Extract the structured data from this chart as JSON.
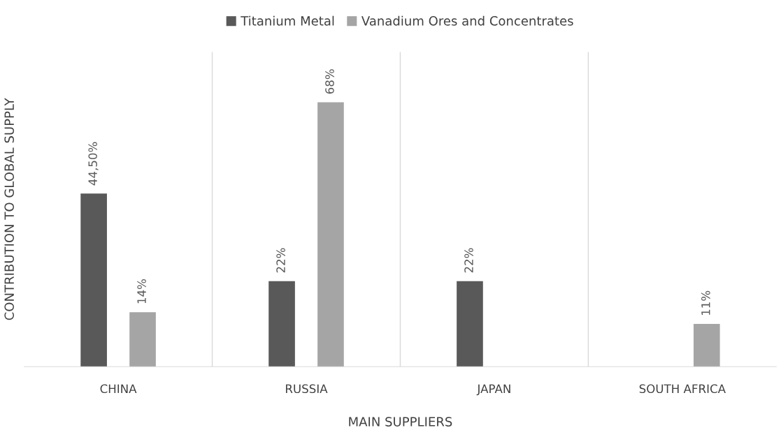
{
  "chart_data": {
    "type": "bar",
    "xlabel": "MAIN SUPPLIERS",
    "ylabel": "CONTRIBUTION TO GLOBAL SUPPLY",
    "categories": [
      "CHINA",
      "RUSSIA",
      "JAPAN",
      "SOUTH AFRICA"
    ],
    "series": [
      {
        "name": "Titanium Metal",
        "color": "#595959",
        "values": [
          44.5,
          22,
          22,
          null
        ],
        "value_labels": [
          "44,50%",
          "22%",
          "22%",
          null
        ]
      },
      {
        "name": "Vanadium Ores and Concentrates",
        "color": "#a5a5a5",
        "values": [
          14,
          68,
          null,
          11
        ],
        "value_labels": [
          "14%",
          "68%",
          null,
          "11%"
        ]
      }
    ],
    "grid": "x",
    "legend": "top"
  }
}
